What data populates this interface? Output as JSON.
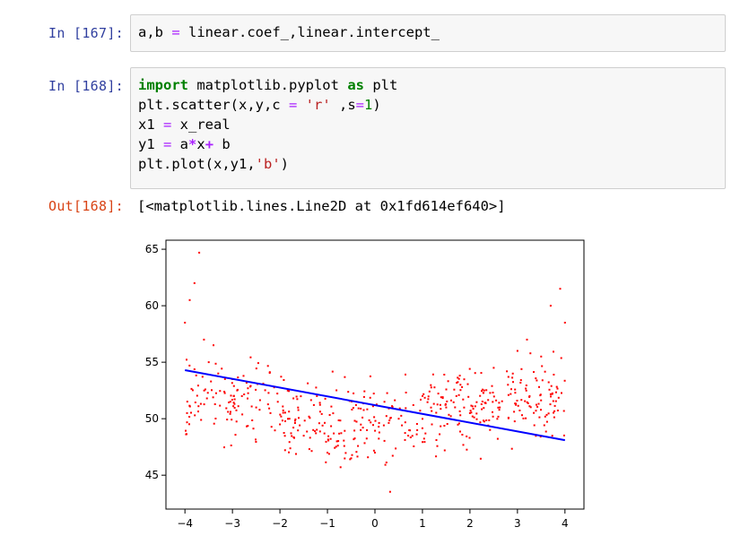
{
  "cells": [
    {
      "prompt": "In [167]:",
      "code": [
        [
          [
            "a,b ",
            ""
          ],
          [
            "=",
            "op"
          ],
          [
            " linear.coef_,linear.intercept_",
            ""
          ]
        ]
      ]
    },
    {
      "prompt": "In [168]:",
      "code": [
        [
          [
            "import",
            "kw"
          ],
          [
            " matplotlib.pyplot ",
            ""
          ],
          [
            "as",
            "kw"
          ],
          [
            " plt",
            ""
          ]
        ],
        [
          [
            "plt.scatter(x,y,c ",
            ""
          ],
          [
            "=",
            "op"
          ],
          [
            " ",
            ""
          ],
          [
            "'r'",
            "str"
          ],
          [
            " ,s",
            ""
          ],
          [
            "=",
            "op"
          ],
          [
            "1",
            "num"
          ],
          [
            ")",
            ""
          ]
        ],
        [
          [
            "x1 ",
            ""
          ],
          [
            "=",
            "op"
          ],
          [
            " x_real",
            ""
          ]
        ],
        [
          [
            "y1 ",
            ""
          ],
          [
            "=",
            "op"
          ],
          [
            " a",
            ""
          ],
          [
            "*",
            "opb"
          ],
          [
            "x",
            ""
          ],
          [
            "+",
            "opb"
          ],
          [
            " b",
            ""
          ]
        ],
        [
          [
            "plt.plot(x,y1,",
            ""
          ],
          [
            "'b'",
            "str"
          ],
          [
            ")",
            ""
          ]
        ]
      ]
    }
  ],
  "output": {
    "prompt": "Out[168]:",
    "text": "[<matplotlib.lines.Line2D at 0x1fd614ef640>]"
  },
  "chart_data": {
    "type": "scatter",
    "xlim": [
      -4.4,
      4.4
    ],
    "ylim": [
      42,
      65.8
    ],
    "xticks": [
      -4,
      -3,
      -2,
      -1,
      0,
      1,
      2,
      3,
      4
    ],
    "xtick_labels": [
      "−4",
      "−3",
      "−2",
      "−1",
      "0",
      "1",
      "2",
      "3",
      "4"
    ],
    "yticks": [
      45,
      50,
      55,
      60,
      65
    ],
    "ytick_labels": [
      "45",
      "50",
      "55",
      "60",
      "65"
    ],
    "scatter_color": "#ff0000",
    "line_color": "#0000ff",
    "scatter_points_approx": {
      "x": [
        -4.0,
        -3.9,
        -3.8,
        -3.7,
        -3.6,
        -3.5,
        -3.4,
        -3.3,
        -3.0,
        -2.8,
        -2.5,
        -2.2,
        -2.0,
        -1.8,
        -1.5,
        -1.3,
        -1.0,
        -0.8,
        -0.5,
        -0.3,
        0.0,
        0.2,
        0.5,
        0.7,
        1.0,
        1.2,
        1.5,
        1.8,
        2.0,
        2.3,
        2.5,
        2.8,
        3.0,
        3.2,
        3.5,
        3.7,
        3.9,
        4.0
      ],
      "y": [
        58.5,
        60.5,
        62.0,
        64.7,
        57.0,
        55.0,
        56.5,
        54.0,
        53.5,
        52.0,
        51.0,
        50.5,
        49.5,
        50.0,
        48.5,
        49.0,
        47.0,
        48.0,
        46.5,
        49.0,
        47.0,
        51.5,
        50.0,
        48.5,
        52.0,
        49.5,
        51.0,
        53.0,
        50.5,
        52.5,
        54.5,
        53.0,
        56.0,
        57.0,
        55.5,
        60.0,
        61.5,
        58.5
      ]
    },
    "line": {
      "x": [
        -4,
        4
      ],
      "y": [
        54.3,
        48.1
      ]
    }
  }
}
